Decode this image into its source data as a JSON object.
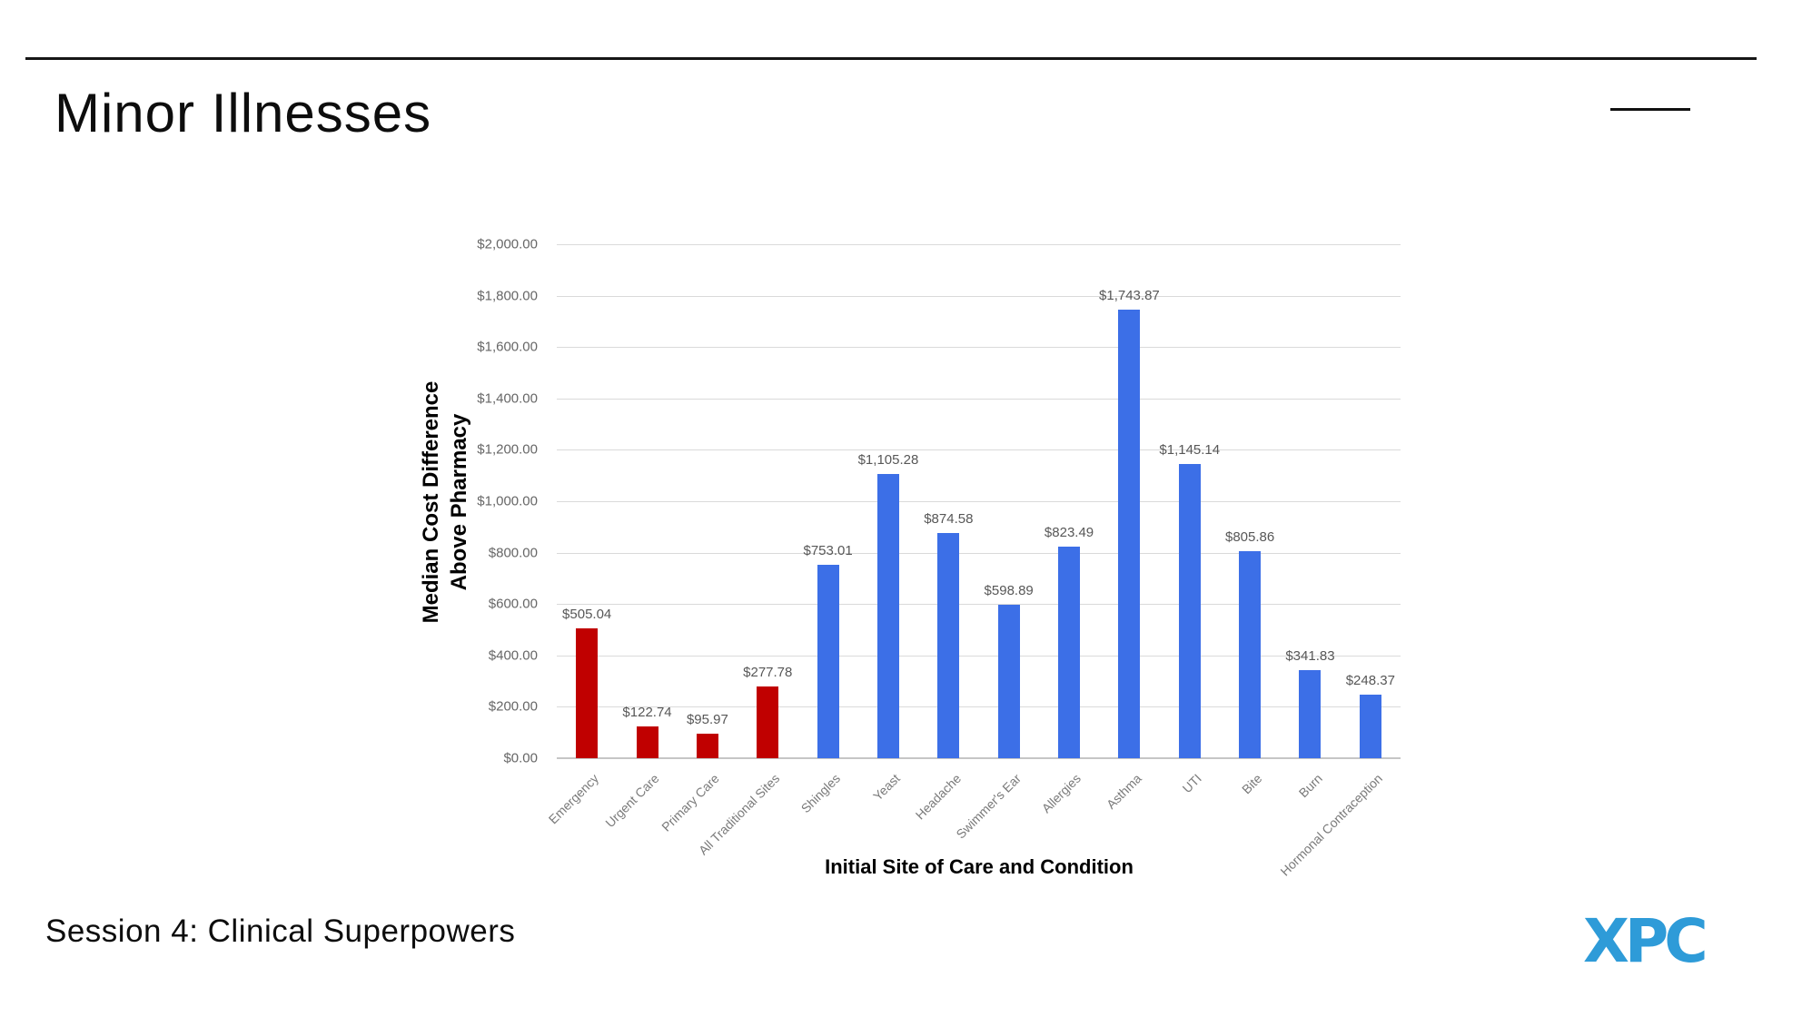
{
  "slide": {
    "title": "Minor Illnesses",
    "footer": "Session 4: Clinical Superpowers",
    "logo_text": "XPC",
    "logo_color": "#2e9bd8"
  },
  "chart_data": {
    "type": "bar",
    "title": "",
    "xlabel": "Initial Site of Care and Condition",
    "ylabel": "Median Cost Difference Above Pharmacy",
    "ylabel_lines": [
      "Median Cost Difference",
      "Above Pharmacy"
    ],
    "ylim": [
      0,
      2000
    ],
    "ytick_step": 200,
    "grid": true,
    "legend": "none",
    "ytick_labels": [
      "$0.00",
      "$200.00",
      "$400.00",
      "$600.00",
      "$800.00",
      "$1,000.00",
      "$1,200.00",
      "$1,400.00",
      "$1,600.00",
      "$1,800.00",
      "$2,000.00"
    ],
    "categories": [
      "Emergency",
      "Urgent Care",
      "Primary Care",
      "All Traditional Sites",
      "Shingles",
      "Yeast",
      "Headache",
      "Swimmer's Ear",
      "Allergies",
      "Asthma",
      "UTI",
      "Bite",
      "Burn",
      "Hormonal Contraception"
    ],
    "values": [
      505.04,
      122.74,
      95.97,
      277.78,
      753.01,
      1105.28,
      874.58,
      598.89,
      823.49,
      1743.87,
      1145.14,
      805.86,
      341.83,
      248.37
    ],
    "value_labels": [
      "$505.04",
      "$122.74",
      "$95.97",
      "$277.78",
      "$753.01",
      "$1,105.28",
      "$874.58",
      "$598.89",
      "$823.49",
      "$1,743.87",
      "$1,145.14",
      "$805.86",
      "$341.83",
      "$248.37"
    ],
    "bar_colors": [
      "#c00000",
      "#c00000",
      "#c00000",
      "#c00000",
      "#3c6fe7",
      "#3c6fe7",
      "#3c6fe7",
      "#3c6fe7",
      "#3c6fe7",
      "#3c6fe7",
      "#3c6fe7",
      "#3c6fe7",
      "#3c6fe7",
      "#3c6fe7"
    ],
    "color_legend": {
      "traditional_sites": "#c00000",
      "conditions": "#3c6fe7"
    }
  }
}
